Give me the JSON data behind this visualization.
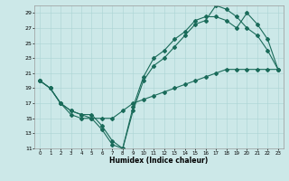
{
  "xlabel": "Humidex (Indice chaleur)",
  "bg_color": "#cce8e8",
  "line_color": "#1a6b5a",
  "grid_color": "#aad4d4",
  "xlim_min": -0.5,
  "xlim_max": 23.5,
  "ylim_min": 11,
  "ylim_max": 30,
  "xticks": [
    0,
    1,
    2,
    3,
    4,
    5,
    6,
    7,
    8,
    9,
    10,
    11,
    12,
    13,
    14,
    15,
    16,
    17,
    18,
    19,
    20,
    21,
    22,
    23
  ],
  "yticks": [
    11,
    13,
    15,
    17,
    19,
    21,
    23,
    25,
    27,
    29
  ],
  "series": [
    {
      "x": [
        0,
        1,
        2,
        3,
        4,
        5,
        6,
        7,
        8,
        9,
        10,
        11,
        12,
        13,
        14,
        15,
        16,
        17,
        18,
        19,
        20,
        21,
        22,
        23
      ],
      "y": [
        20,
        19,
        17,
        16,
        15.5,
        15.5,
        14,
        12,
        11,
        16.5,
        20.5,
        23,
        24,
        25.5,
        26.5,
        28,
        28.5,
        28.5,
        28,
        27,
        29,
        27.5,
        25.5,
        21.5
      ]
    },
    {
      "x": [
        0,
        1,
        2,
        3,
        4,
        5,
        6,
        7,
        8,
        9,
        10,
        11,
        12,
        13,
        14,
        15,
        16,
        17,
        18,
        19,
        20,
        21,
        22,
        23
      ],
      "y": [
        20,
        19,
        17,
        16,
        15.5,
        15,
        13.5,
        11.5,
        11,
        16,
        20,
        22,
        23,
        24.5,
        26,
        27.5,
        28,
        30,
        29.5,
        28.5,
        27,
        26,
        24,
        21.5
      ]
    },
    {
      "x": [
        0,
        1,
        2,
        3,
        4,
        5,
        6,
        7,
        8,
        9,
        10,
        11,
        12,
        13,
        14,
        15,
        16,
        17,
        18,
        19,
        20,
        21,
        22,
        23
      ],
      "y": [
        20,
        19,
        17,
        15.5,
        15,
        15,
        15,
        15,
        16,
        17,
        17.5,
        18,
        18.5,
        19,
        19.5,
        20,
        20.5,
        21,
        21.5,
        21.5,
        21.5,
        21.5,
        21.5,
        21.5
      ]
    }
  ]
}
